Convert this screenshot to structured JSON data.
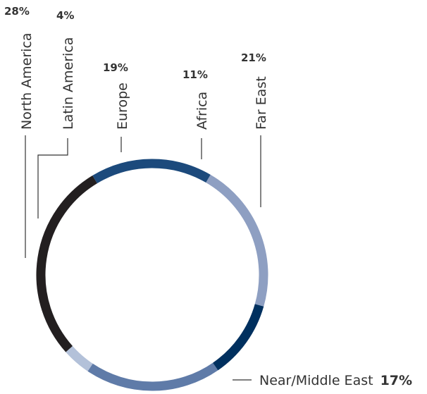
{
  "chart_data": {
    "type": "pie",
    "title": "",
    "style": "ring",
    "series": [
      {
        "name": "North America",
        "value": 28,
        "label": "28%",
        "color": "#231f20"
      },
      {
        "name": "Latin America",
        "value": 4,
        "label": "4%",
        "color": "#b3c1d9"
      },
      {
        "name": "Europe",
        "value": 19,
        "label": "19%",
        "color": "#5f7ba8"
      },
      {
        "name": "Africa",
        "value": 11,
        "label": "11%",
        "color": "#00305f"
      },
      {
        "name": "Far East",
        "value": 21,
        "label": "21%",
        "color": "#8e9fc2"
      },
      {
        "name": "Near/Middle East",
        "value": 17,
        "label": "17%",
        "color": "#1c4a7c"
      }
    ],
    "legend": "none"
  }
}
